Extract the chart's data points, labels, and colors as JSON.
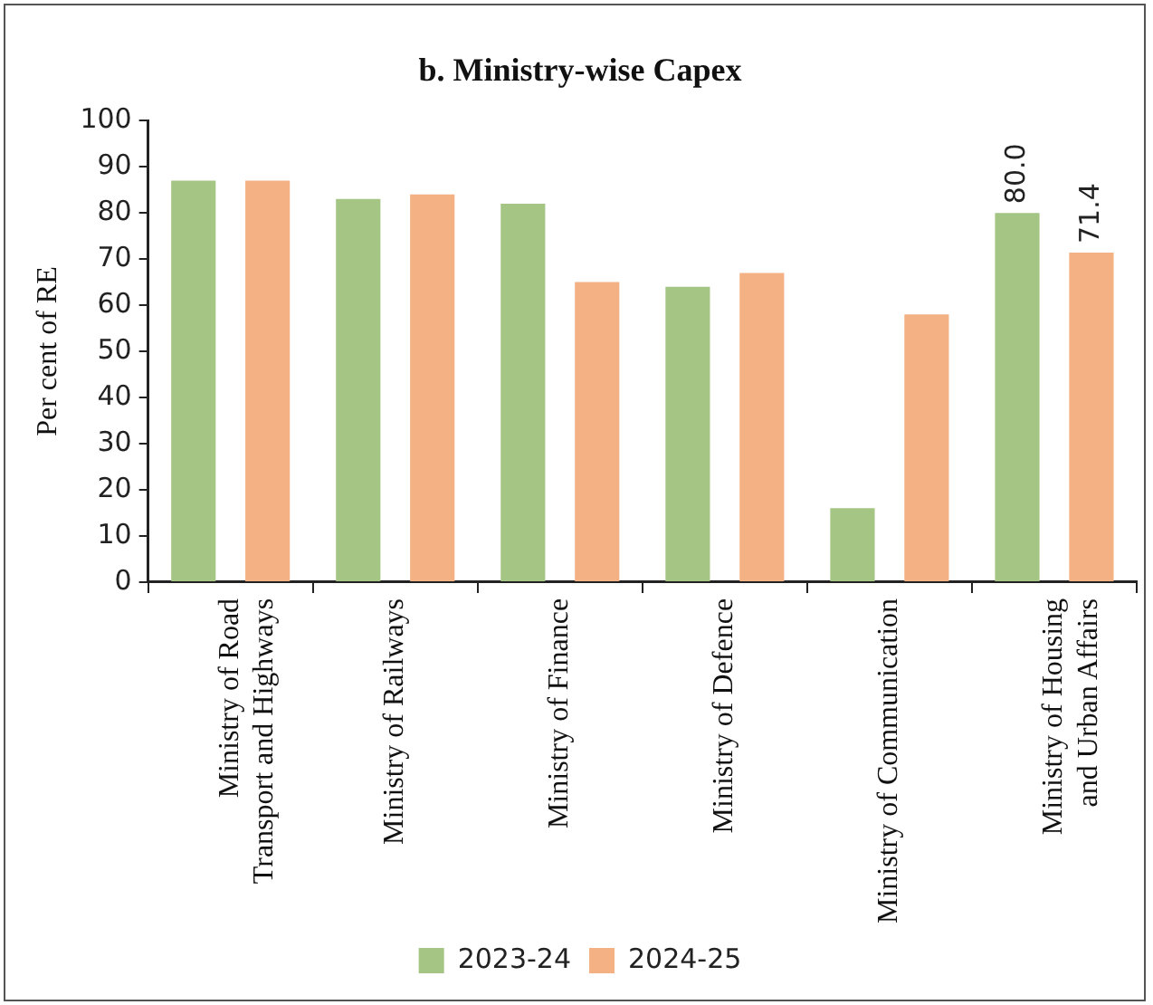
{
  "chart_data": {
    "type": "bar",
    "title": "b. Ministry-wise Capex",
    "ylabel": "Per cent of RE",
    "categories": [
      "Ministry of Road Transport and Highways",
      "Ministry of Railways",
      "Ministry of Finance",
      "Ministry of Defence",
      "Ministry of Communication",
      "Ministry of Housing and Urban Affairs"
    ],
    "series": [
      {
        "name": "2023-24",
        "color": "#a5c584",
        "values": [
          87,
          83,
          82,
          64,
          16,
          80.0
        ],
        "value_labels": [
          null,
          null,
          null,
          null,
          null,
          "80.0"
        ]
      },
      {
        "name": "2024-25",
        "color": "#f4b183",
        "values": [
          87,
          84,
          65,
          67,
          58,
          71.4
        ],
        "value_labels": [
          null,
          null,
          null,
          null,
          null,
          "71.4"
        ]
      }
    ],
    "ylim": [
      0,
      100
    ],
    "yticks": [
      0,
      10,
      20,
      30,
      40,
      50,
      60,
      70,
      80,
      90,
      100
    ],
    "grid": false,
    "legend": "bottom"
  }
}
